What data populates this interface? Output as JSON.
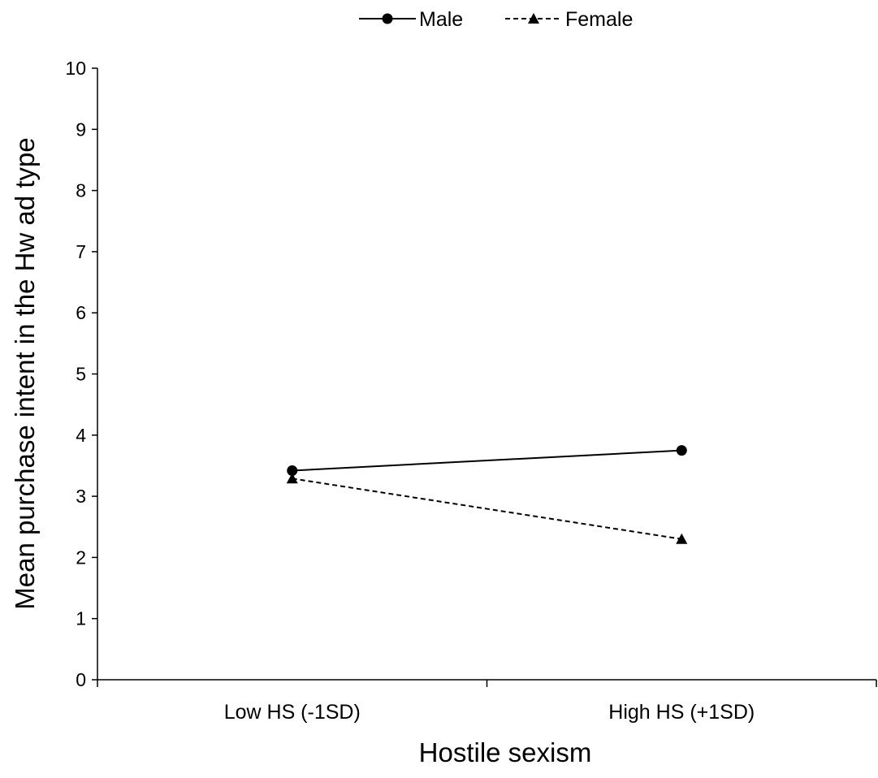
{
  "chart_data": {
    "type": "line",
    "categories": [
      "Low HS (-1SD)",
      "High HS (+1SD)"
    ],
    "series": [
      {
        "name": "Male",
        "values": [
          3.42,
          3.75
        ],
        "line_style": "solid",
        "marker": "circle",
        "color": "#000000"
      },
      {
        "name": "Female",
        "values": [
          3.29,
          2.3
        ],
        "line_style": "dashed",
        "marker": "triangle",
        "color": "#000000"
      }
    ],
    "xlabel": "Hostile sexism",
    "ylabel": "Mean purchase intent in the Hw ad type",
    "ylim": [
      0,
      10
    ],
    "yticks": [
      "0",
      "1",
      "2",
      "3",
      "4",
      "5",
      "6",
      "7",
      "8",
      "9",
      "10"
    ],
    "grid": false,
    "legend_position": "top"
  }
}
